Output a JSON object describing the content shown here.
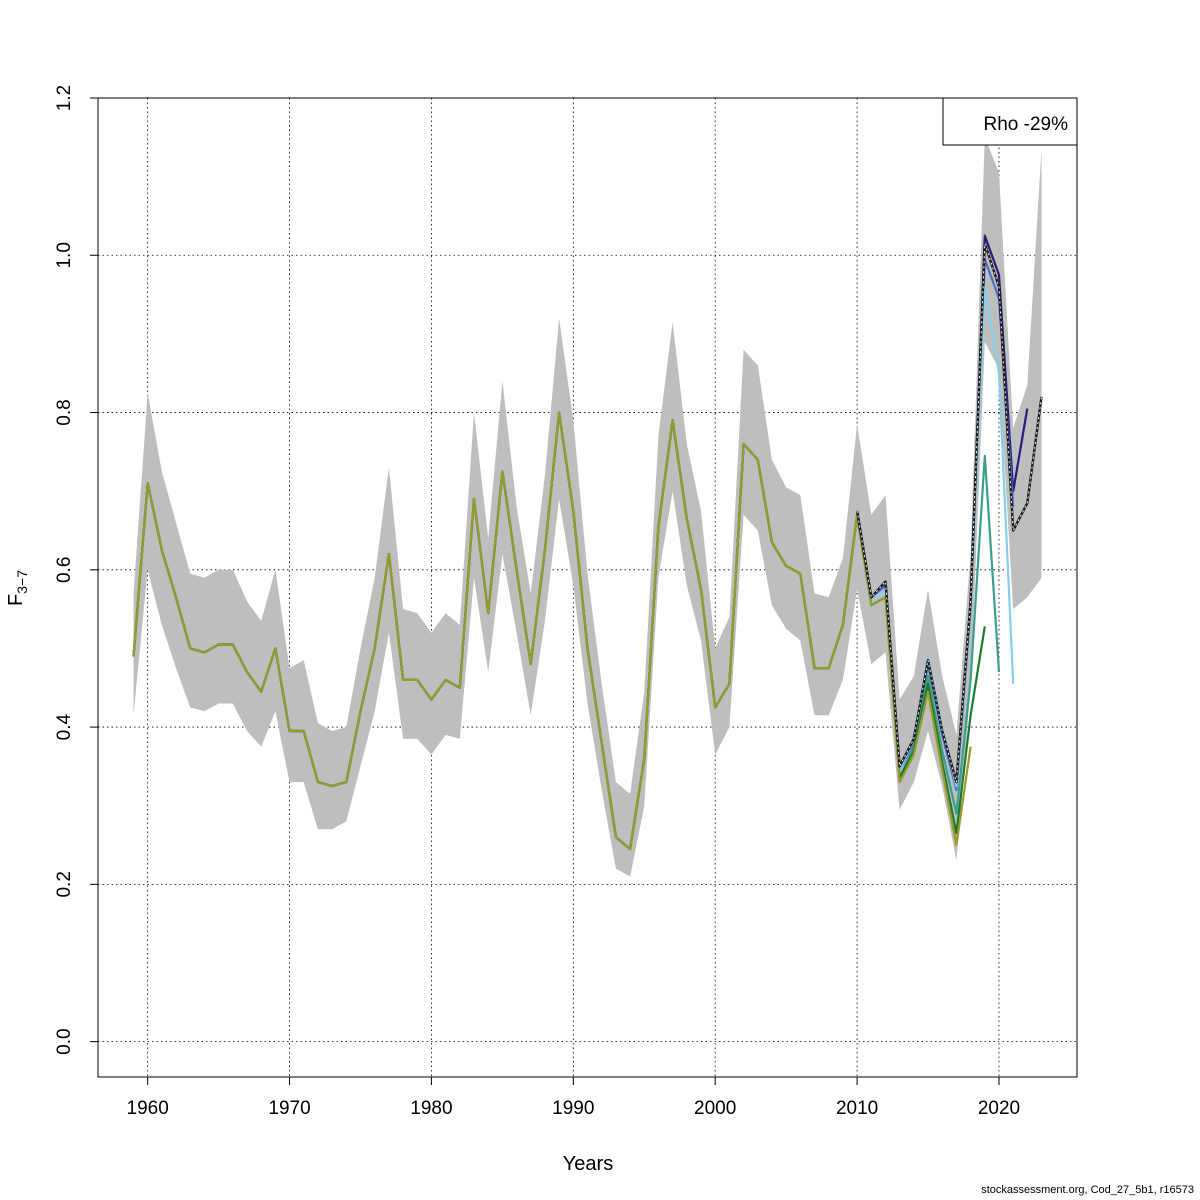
{
  "chart_data": {
    "type": "line",
    "xlabel": "Years",
    "ylabel_main": "F",
    "ylabel_sub": "3−7",
    "xlim": [
      1956.5,
      2025.5
    ],
    "ylim": [
      -0.045,
      1.2
    ],
    "xticks": [
      1960,
      1970,
      1980,
      1990,
      2000,
      2010,
      2020
    ],
    "yticks": [
      0.0,
      0.2,
      0.4,
      0.6,
      0.8,
      1.0,
      1.2
    ],
    "ytick_labels": [
      "0.0",
      "0.2",
      "0.4",
      "0.6",
      "0.8",
      "1.0",
      "1.2"
    ],
    "grid": true,
    "legend": {
      "position": "top-right",
      "text": "Rho -29%"
    },
    "ci_band": {
      "x": [
        1959,
        1960,
        1961,
        1962,
        1963,
        1964,
        1965,
        1966,
        1967,
        1968,
        1969,
        1970,
        1971,
        1972,
        1973,
        1974,
        1975,
        1976,
        1977,
        1978,
        1979,
        1980,
        1981,
        1982,
        1983,
        1984,
        1985,
        1986,
        1987,
        1988,
        1989,
        1990,
        1991,
        1992,
        1993,
        1994,
        1995,
        1996,
        1997,
        1998,
        1999,
        2000,
        2001,
        2002,
        2003,
        2004,
        2005,
        2006,
        2007,
        2008,
        2009,
        2010,
        2011,
        2012,
        2013,
        2014,
        2015,
        2016,
        2017,
        2018,
        2019,
        2020,
        2021,
        2022,
        2023
      ],
      "lower": [
        0.415,
        0.6,
        0.53,
        0.475,
        0.425,
        0.42,
        0.43,
        0.43,
        0.395,
        0.375,
        0.42,
        0.33,
        0.33,
        0.27,
        0.27,
        0.28,
        0.35,
        0.42,
        0.52,
        0.385,
        0.385,
        0.365,
        0.39,
        0.385,
        0.59,
        0.47,
        0.62,
        0.52,
        0.415,
        0.535,
        0.69,
        0.58,
        0.43,
        0.32,
        0.22,
        0.21,
        0.3,
        0.59,
        0.7,
        0.58,
        0.51,
        0.365,
        0.4,
        0.67,
        0.65,
        0.555,
        0.525,
        0.51,
        0.415,
        0.415,
        0.46,
        0.575,
        0.48,
        0.495,
        0.295,
        0.33,
        0.395,
        0.325,
        0.23,
        0.45,
        0.89,
        0.855,
        0.55,
        0.565,
        0.59
      ],
      "upper": [
        0.57,
        0.825,
        0.725,
        0.66,
        0.595,
        0.59,
        0.6,
        0.6,
        0.56,
        0.535,
        0.6,
        0.475,
        0.485,
        0.405,
        0.395,
        0.4,
        0.5,
        0.59,
        0.73,
        0.55,
        0.545,
        0.52,
        0.545,
        0.53,
        0.8,
        0.64,
        0.84,
        0.68,
        0.57,
        0.72,
        0.92,
        0.79,
        0.595,
        0.455,
        0.33,
        0.315,
        0.445,
        0.77,
        0.915,
        0.76,
        0.675,
        0.5,
        0.54,
        0.88,
        0.86,
        0.74,
        0.705,
        0.695,
        0.57,
        0.565,
        0.615,
        0.785,
        0.67,
        0.695,
        0.435,
        0.465,
        0.575,
        0.465,
        0.39,
        0.62,
        1.15,
        1.105,
        0.78,
        0.835,
        1.135
      ]
    },
    "base": {
      "x": [
        1959,
        1960,
        1961,
        1962,
        1963,
        1964,
        1965,
        1966,
        1967,
        1968,
        1969,
        1970,
        1971,
        1972,
        1973,
        1974,
        1975,
        1976,
        1977,
        1978,
        1979,
        1980,
        1981,
        1982,
        1983,
        1984,
        1985,
        1986,
        1987,
        1988,
        1989,
        1990,
        1991,
        1992,
        1993,
        1994,
        1995,
        1996,
        1997,
        1998,
        1999,
        2000,
        2001,
        2002,
        2003,
        2004,
        2005,
        2006,
        2007,
        2008,
        2009,
        2010
      ],
      "y": [
        0.49,
        0.71,
        0.625,
        0.565,
        0.5,
        0.495,
        0.505,
        0.505,
        0.47,
        0.445,
        0.5,
        0.395,
        0.395,
        0.33,
        0.325,
        0.33,
        0.42,
        0.5,
        0.62,
        0.46,
        0.46,
        0.435,
        0.46,
        0.45,
        0.69,
        0.545,
        0.725,
        0.6,
        0.48,
        0.625,
        0.8,
        0.675,
        0.5,
        0.38,
        0.26,
        0.245,
        0.36,
        0.655,
        0.79,
        0.665,
        0.575,
        0.425,
        0.455,
        0.76,
        0.74,
        0.635,
        0.605,
        0.595,
        0.475,
        0.475,
        0.53,
        0.67
      ]
    },
    "series": [
      {
        "color": "#2a1a7a",
        "x": [
          2010,
          2011,
          2012,
          2013,
          2014,
          2015,
          2016,
          2017,
          2018,
          2019,
          2020,
          2021,
          2022
        ],
        "y": [
          0.675,
          0.565,
          0.585,
          0.35,
          0.385,
          0.485,
          0.395,
          0.33,
          0.56,
          1.025,
          0.975,
          0.7,
          0.805
        ]
      },
      {
        "color": "#4a6ed0",
        "x": [
          2010,
          2011,
          2012,
          2013,
          2014,
          2015,
          2016,
          2017,
          2018,
          2019,
          2020,
          2021
        ],
        "y": [
          0.675,
          0.565,
          0.58,
          0.345,
          0.38,
          0.48,
          0.39,
          0.32,
          0.55,
          0.995,
          0.945,
          0.68
        ]
      },
      {
        "color": "#87ceeb",
        "x": [
          2010,
          2011,
          2012,
          2013,
          2014,
          2015,
          2016,
          2017,
          2018,
          2019,
          2020,
          2021
        ],
        "y": [
          0.675,
          0.56,
          0.575,
          0.345,
          0.385,
          0.49,
          0.4,
          0.325,
          0.555,
          0.96,
          0.85,
          0.455
        ]
      },
      {
        "color": "#3aa08a",
        "x": [
          2010,
          2011,
          2012,
          2013,
          2014,
          2015,
          2016,
          2017,
          2018,
          2019,
          2020
        ],
        "y": [
          0.67,
          0.555,
          0.565,
          0.335,
          0.375,
          0.465,
          0.37,
          0.29,
          0.46,
          0.745,
          0.47
        ]
      },
      {
        "color": "#1a7a30",
        "x": [
          2010,
          2011,
          2012,
          2013,
          2014,
          2015,
          2016,
          2017,
          2018,
          2019
        ],
        "y": [
          0.67,
          0.555,
          0.565,
          0.335,
          0.37,
          0.455,
          0.355,
          0.265,
          0.415,
          0.528
        ]
      },
      {
        "color": "#9a9a2a",
        "x": [
          2010,
          2011,
          2012,
          2013,
          2014,
          2015,
          2016,
          2017,
          2018
        ],
        "y": [
          0.67,
          0.555,
          0.565,
          0.33,
          0.365,
          0.445,
          0.345,
          0.25,
          0.375
        ]
      },
      {
        "color": "#1a1a1a",
        "dashed": true,
        "x": [
          2010,
          2011,
          2012,
          2013,
          2014,
          2015,
          2016,
          2017,
          2018,
          2019,
          2020,
          2021,
          2022,
          2023
        ],
        "y": [
          0.675,
          0.565,
          0.585,
          0.35,
          0.385,
          0.485,
          0.395,
          0.33,
          0.56,
          1.015,
          0.96,
          0.65,
          0.685,
          0.82
        ]
      }
    ]
  },
  "credit": "stockassessment.org, Cod_27_5b1, r16573"
}
